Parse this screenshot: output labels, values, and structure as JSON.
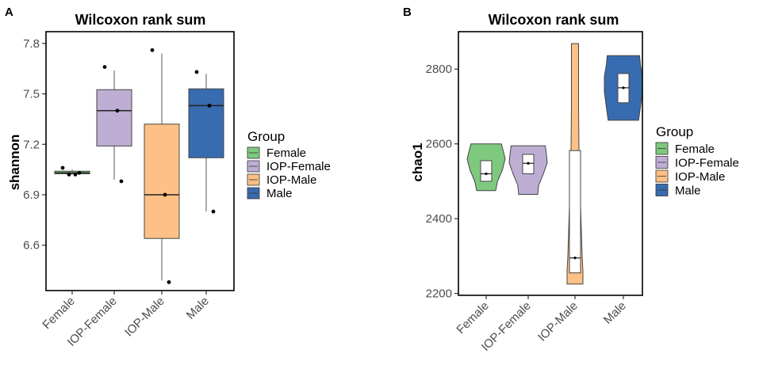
{
  "groups": [
    "Female",
    "IOP-Female",
    "IOP-Male",
    "Male"
  ],
  "colors": {
    "Female": "#7fc97f",
    "IOP-Female": "#beaed4",
    "IOP-Male": "#fdc086",
    "Male": "#386cb0"
  },
  "chart_data": [
    {
      "panel_label": "A",
      "type": "box",
      "title": "Wilcoxon rank sum",
      "xlabel": "",
      "ylabel": "shannon",
      "ylim": [
        6.33,
        7.87
      ],
      "yticks": [
        6.6,
        6.9,
        7.2,
        7.5,
        7.8
      ],
      "ytick_labels": [
        "6.6",
        "6.9",
        "7.2",
        "7.5",
        "7.8"
      ],
      "categories": [
        "Female",
        "IOP-Female",
        "IOP-Male",
        "Male"
      ],
      "legend": {
        "title": "Group",
        "labels": [
          "Female",
          "IOP-Female",
          "IOP-Male",
          "Male"
        ],
        "position": "right"
      },
      "boxes": [
        {
          "group": "Female",
          "min": 7.02,
          "q1": 7.025,
          "median": 7.03,
          "q3": 7.04,
          "max": 7.05
        },
        {
          "group": "IOP-Female",
          "min": 6.99,
          "q1": 7.19,
          "median": 7.4,
          "q3": 7.525,
          "max": 7.64
        },
        {
          "group": "IOP-Male",
          "min": 6.39,
          "q1": 6.64,
          "median": 6.9,
          "q3": 7.32,
          "max": 7.74
        },
        {
          "group": "Male",
          "min": 6.8,
          "q1": 7.12,
          "median": 7.43,
          "q3": 7.53,
          "max": 7.62
        }
      ],
      "points": [
        {
          "group": "Female",
          "values": [
            7.06,
            7.02,
            7.03,
            7.02
          ]
        },
        {
          "group": "IOP-Female",
          "values": [
            7.66,
            7.4,
            6.98
          ]
        },
        {
          "group": "IOP-Male",
          "values": [
            7.76,
            6.9,
            6.38
          ]
        },
        {
          "group": "Male",
          "values": [
            7.63,
            7.43,
            6.8
          ]
        }
      ]
    },
    {
      "panel_label": "B",
      "type": "violin",
      "title": "Wilcoxon rank sum",
      "xlabel": "",
      "ylabel": "chao1",
      "ylim": [
        2195,
        2900
      ],
      "yticks": [
        2200,
        2400,
        2600,
        2800
      ],
      "ytick_labels": [
        "2200",
        "2400",
        "2600",
        "2800"
      ],
      "categories": [
        "Female",
        "IOP-Female",
        "IOP-Male",
        "Male"
      ],
      "legend": {
        "title": "Group",
        "labels": [
          "Female",
          "IOP-Female",
          "IOP-Male",
          "Male"
        ],
        "position": "right"
      },
      "violins": [
        {
          "group": "Female",
          "min": 2475,
          "max": 2600,
          "profile": [
            [
              2475,
              0.5
            ],
            [
              2500,
              0.6
            ],
            [
              2530,
              0.85
            ],
            [
              2560,
              1.0
            ],
            [
              2580,
              0.9
            ],
            [
              2600,
              0.8
            ]
          ],
          "box": {
            "q1": 2500,
            "median": 2520,
            "q3": 2555
          }
        },
        {
          "group": "IOP-Female",
          "min": 2465,
          "max": 2595,
          "profile": [
            [
              2465,
              0.5
            ],
            [
              2490,
              0.55
            ],
            [
              2520,
              0.8
            ],
            [
              2550,
              1.0
            ],
            [
              2575,
              0.95
            ],
            [
              2595,
              0.9
            ]
          ],
          "box": {
            "q1": 2520,
            "median": 2548,
            "q3": 2572
          }
        },
        {
          "group": "IOP-Male",
          "min": 2225,
          "max": 2868,
          "profile": [
            [
              2225,
              1.0
            ],
            [
              2260,
              1.0
            ],
            [
              2300,
              0.9
            ],
            [
              2400,
              0.75
            ],
            [
              2500,
              0.6
            ],
            [
              2580,
              0.5
            ],
            [
              2700,
              0.45
            ],
            [
              2800,
              0.45
            ],
            [
              2868,
              0.45
            ]
          ],
          "box": {
            "q1": 2255,
            "median": 2295,
            "q3": 2582
          }
        },
        {
          "group": "Male",
          "min": 2663,
          "max": 2836,
          "profile": [
            [
              2663,
              0.8
            ],
            [
              2700,
              0.9
            ],
            [
              2740,
              1.0
            ],
            [
              2780,
              1.0
            ],
            [
              2810,
              0.9
            ],
            [
              2836,
              0.85
            ]
          ],
          "box": {
            "q1": 2710,
            "median": 2750,
            "q3": 2788
          }
        }
      ]
    }
  ]
}
